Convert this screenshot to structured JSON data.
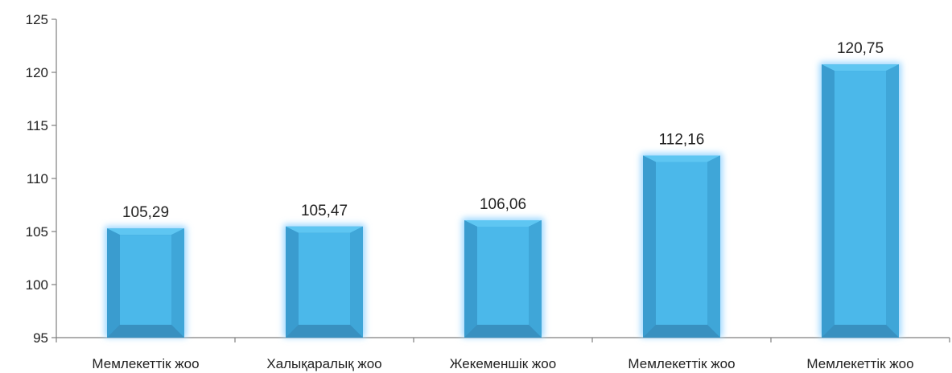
{
  "chart_data": {
    "type": "bar",
    "title": "",
    "xlabel": "",
    "ylabel": "",
    "categories": [
      "Мемлекеттік жоо",
      "Халықаралық жоо",
      "Жекеменшік жоо",
      "Мемлекеттік жоо",
      "Мемлекеттік жоо"
    ],
    "values": [
      105.29,
      105.47,
      106.06,
      112.16,
      120.75
    ],
    "value_labels": [
      "105,29",
      "105,47",
      "106,06",
      "112,16",
      "120,75"
    ],
    "ylim": [
      95,
      125
    ],
    "yticks": [
      95,
      100,
      105,
      110,
      115,
      120,
      125
    ],
    "grid": false,
    "legend": "none",
    "colors": {
      "bar_face": "#4bb8ea",
      "bar_edge": "#2f8fc4",
      "bar_glow": "#9fd8ff",
      "axis": "#7f7f7f",
      "text": "#222222"
    }
  }
}
